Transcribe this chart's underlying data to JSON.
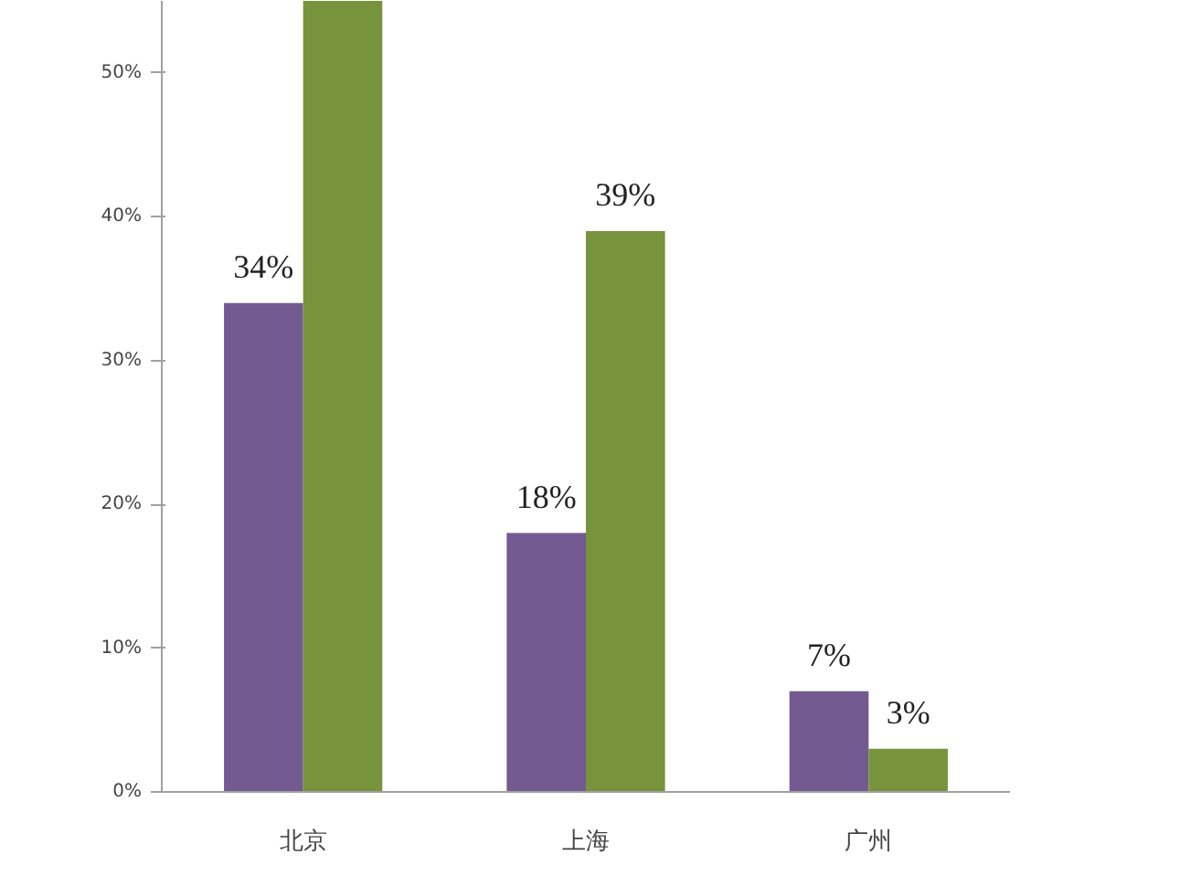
{
  "chart_data": {
    "type": "bar",
    "categories": [
      "北京",
      "上海",
      "广州"
    ],
    "series": [
      {
        "color": "#735a91",
        "values": [
          34,
          18,
          7
        ],
        "value_labels": [
          "34%",
          "18%",
          "7%"
        ]
      },
      {
        "color": "#77933c",
        "values": [
          55,
          39,
          3
        ],
        "value_labels": [
          null,
          "39%",
          "3%"
        ]
      }
    ],
    "ylim": [
      0,
      55
    ],
    "yticks": [
      {
        "value": 0,
        "label": "0%"
      },
      {
        "value": 10,
        "label": "10%"
      },
      {
        "value": 20,
        "label": "20%"
      },
      {
        "value": 30,
        "label": "30%"
      },
      {
        "value": 40,
        "label": "40%"
      },
      {
        "value": 50,
        "label": "50%"
      }
    ]
  }
}
